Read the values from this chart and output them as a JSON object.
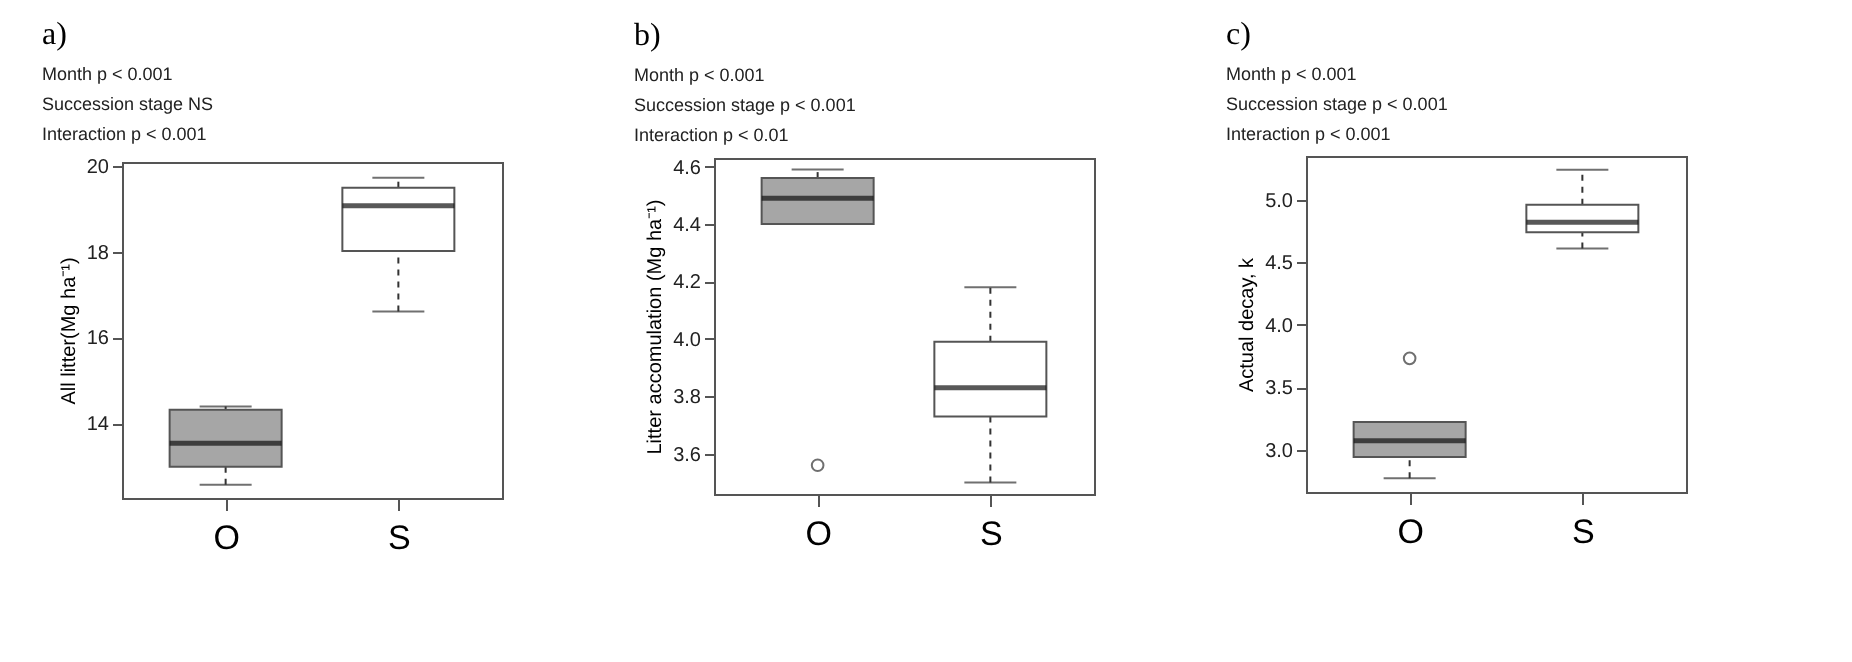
{
  "chart_data": [
    {
      "type": "box",
      "title": "a)",
      "annotations": [
        "Month            p < 0.001",
        "Succession stage   NS",
        "Interaction       p < 0.001"
      ],
      "ylabel": "All litter(Mg ha⁻¹)",
      "categories": [
        "O",
        "S"
      ],
      "colors": [
        "#a6a6a6",
        "#ffffff"
      ],
      "ylim": [
        12.25,
        20.1
      ],
      "yticks": [
        14,
        16,
        18,
        20
      ],
      "boxes": [
        {
          "low": 12.56,
          "q1": 12.98,
          "median": 13.53,
          "q3": 14.31,
          "high": 14.39
        },
        {
          "low": 16.61,
          "q1": 18.02,
          "median": 19.08,
          "q3": 19.5,
          "high": 19.73
        }
      ]
    },
    {
      "type": "box",
      "title": "b)",
      "annotations": [
        "Month        p < 0.001",
        "Succession stage  p < 0.001",
        "Interaction  p < 0.01"
      ],
      "ylabel": "Litter accomulation (Mg ha⁻¹)",
      "categories": [
        "O",
        "S"
      ],
      "colors": [
        "#a6a6a6",
        "#ffffff"
      ],
      "ylim": [
        3.46,
        4.63
      ],
      "yticks": [
        3.6,
        3.8,
        {
          "value": 4,
          "label": "4.0"
        },
        4.2,
        4.4,
        4.6
      ],
      "boxes": [
        {
          "low": 4.4,
          "q1": 4.4,
          "median": 4.49,
          "q3": 4.56,
          "high": 4.59,
          "outliers": [
            3.56
          ]
        },
        {
          "low": 3.5,
          "q1": 3.73,
          "median": 3.83,
          "q3": 3.99,
          "high": 4.18
        }
      ]
    },
    {
      "type": "box",
      "title": "c)",
      "annotations": [
        "Month           p < 0.001",
        "Succession stage p < 0.001",
        "Interaction     p < 0.001"
      ],
      "ylabel": "Actual decay, k",
      "categories": [
        "O",
        "S"
      ],
      "colors": [
        "#a6a6a6",
        "#ffffff"
      ],
      "ylim": [
        2.66,
        5.35
      ],
      "yticks": [
        {
          "value": 3,
          "label": "3.0"
        },
        3.5,
        {
          "value": 4,
          "label": "4.0"
        },
        4.5,
        {
          "value": 5,
          "label": "5.0"
        }
      ],
      "boxes": [
        {
          "low": 2.77,
          "q1": 2.94,
          "median": 3.07,
          "q3": 3.22,
          "high": 3.22,
          "outliers": [
            3.73
          ]
        },
        {
          "low": 4.61,
          "q1": 4.74,
          "median": 4.82,
          "q3": 4.96,
          "high": 5.24
        }
      ]
    }
  ]
}
